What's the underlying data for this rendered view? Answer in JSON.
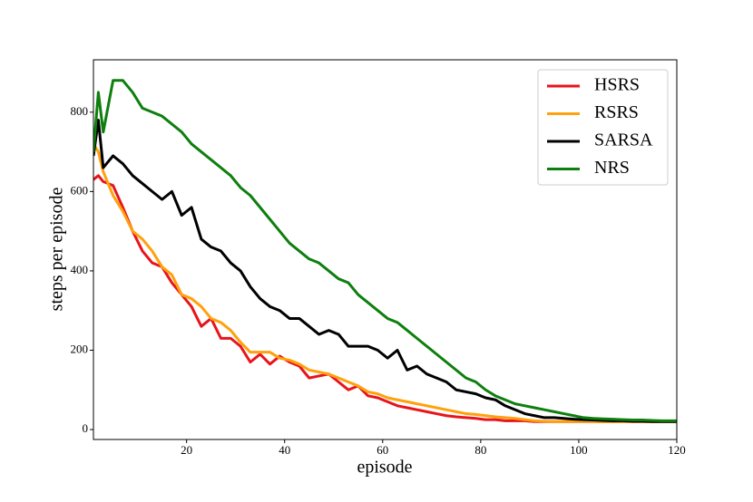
{
  "chart_data": {
    "type": "line",
    "x_label": "episode",
    "y_label": "steps per episode",
    "x": [
      1,
      2,
      3,
      5,
      7,
      9,
      11,
      13,
      15,
      17,
      19,
      21,
      23,
      25,
      27,
      29,
      31,
      33,
      35,
      37,
      39,
      41,
      43,
      45,
      47,
      49,
      51,
      53,
      55,
      57,
      59,
      61,
      63,
      65,
      67,
      69,
      71,
      73,
      75,
      77,
      79,
      81,
      83,
      85,
      87,
      89,
      91,
      93,
      95,
      97,
      99,
      101,
      103,
      105,
      107,
      109,
      111,
      113,
      115,
      117,
      119,
      120
    ],
    "series": [
      {
        "name": "HSRS",
        "color": "#e8141b",
        "values": [
          630,
          640,
          625,
          615,
          560,
          500,
          450,
          420,
          410,
          370,
          340,
          310,
          260,
          280,
          230,
          230,
          210,
          170,
          190,
          165,
          185,
          170,
          160,
          130,
          135,
          140,
          120,
          100,
          110,
          85,
          80,
          70,
          60,
          55,
          50,
          45,
          40,
          35,
          32,
          30,
          28,
          25,
          25,
          22,
          22,
          22,
          20,
          20,
          20,
          20,
          20,
          20,
          20,
          20,
          20,
          20,
          20,
          20,
          20,
          20,
          20,
          20
        ]
      },
      {
        "name": "RSRS",
        "color": "#ffa10c",
        "values": [
          720,
          700,
          650,
          590,
          550,
          500,
          480,
          450,
          410,
          390,
          340,
          330,
          310,
          280,
          270,
          250,
          220,
          195,
          195,
          195,
          180,
          175,
          165,
          150,
          145,
          140,
          130,
          120,
          110,
          95,
          90,
          80,
          75,
          70,
          65,
          60,
          55,
          50,
          45,
          40,
          38,
          35,
          32,
          30,
          28,
          25,
          22,
          21,
          20,
          20,
          20,
          20,
          20,
          20,
          20,
          20,
          20,
          20,
          20,
          20,
          20,
          20
        ]
      },
      {
        "name": "SARSA",
        "color": "#000000",
        "values": [
          690,
          780,
          660,
          690,
          670,
          640,
          620,
          600,
          580,
          600,
          540,
          560,
          480,
          460,
          450,
          420,
          400,
          360,
          330,
          310,
          300,
          280,
          280,
          260,
          240,
          250,
          240,
          210,
          210,
          210,
          200,
          180,
          200,
          150,
          160,
          140,
          130,
          120,
          100,
          95,
          90,
          80,
          75,
          60,
          50,
          40,
          35,
          30,
          30,
          28,
          26,
          25,
          24,
          23,
          22,
          22,
          21,
          21,
          20,
          20,
          20,
          20
        ]
      },
      {
        "name": "NRS",
        "color": "#0d7f0d",
        "values": [
          700,
          850,
          750,
          880,
          880,
          850,
          810,
          800,
          790,
          770,
          750,
          720,
          700,
          680,
          660,
          640,
          610,
          590,
          560,
          530,
          500,
          470,
          450,
          430,
          420,
          400,
          380,
          370,
          340,
          320,
          300,
          280,
          270,
          250,
          230,
          210,
          190,
          170,
          150,
          130,
          120,
          100,
          85,
          75,
          65,
          60,
          55,
          50,
          45,
          40,
          35,
          30,
          28,
          27,
          26,
          25,
          24,
          24,
          23,
          22,
          22,
          22
        ]
      }
    ],
    "xlim": [
      1,
      120
    ],
    "xticks": [
      20,
      40,
      60,
      80,
      100,
      120
    ],
    "ylim": [
      -25,
      932
    ],
    "yticks": [
      0,
      200,
      400,
      600,
      800
    ],
    "legend": "upper right"
  }
}
